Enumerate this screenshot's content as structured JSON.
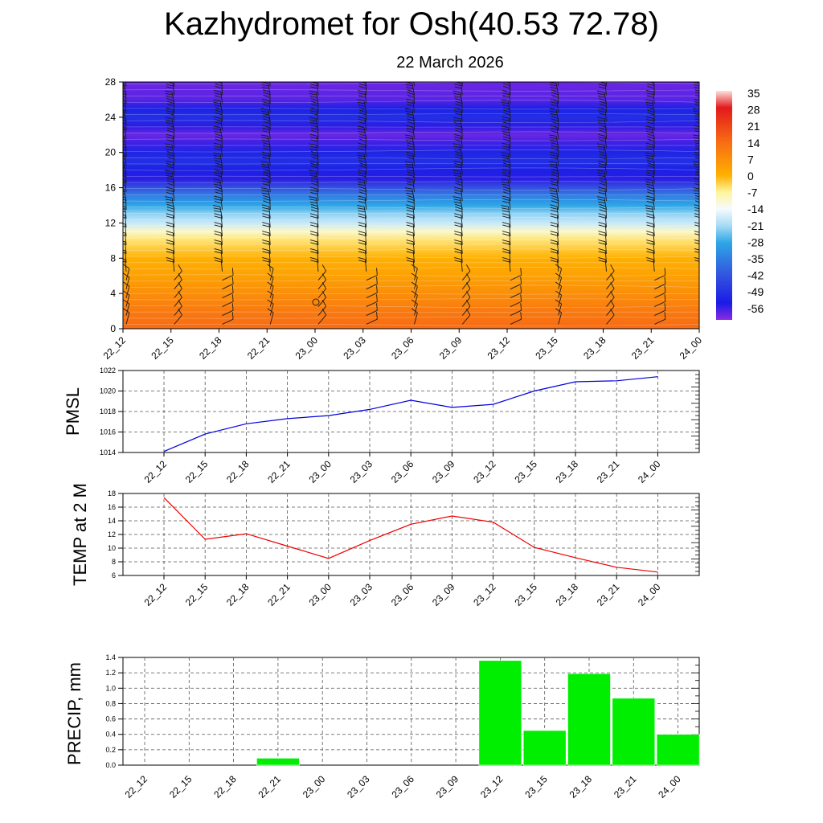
{
  "title": "Kazhydromet for Osh(40.53 72.78)",
  "subtitle": "22 March 2026",
  "time_labels": [
    "22_12",
    "22_15",
    "22_18",
    "22_21",
    "23_00",
    "23_03",
    "23_06",
    "23_09",
    "23_12",
    "23_15",
    "23_18",
    "23_21",
    "24_00"
  ],
  "chart_data": [
    {
      "type": "heatmap",
      "name": "vertical-temperature-wind",
      "x": [
        "22_12",
        "22_15",
        "22_18",
        "22_21",
        "23_00",
        "23_03",
        "23_06",
        "23_09",
        "23_12",
        "23_15",
        "23_18",
        "23_21",
        "24_00"
      ],
      "ylim": [
        0,
        28
      ],
      "yticks": [
        0,
        4,
        8,
        12,
        16,
        20,
        24,
        28
      ],
      "profile": [
        {
          "level": 0,
          "temp": 14
        },
        {
          "level": 2,
          "temp": 11
        },
        {
          "level": 4,
          "temp": 7
        },
        {
          "level": 6,
          "temp": 3
        },
        {
          "level": 8,
          "temp": 0
        },
        {
          "level": 10,
          "temp": -5
        },
        {
          "level": 11,
          "temp": -10
        },
        {
          "level": 12,
          "temp": -18
        },
        {
          "level": 13,
          "temp": -22
        },
        {
          "level": 14,
          "temp": -28
        },
        {
          "level": 15,
          "temp": -34
        },
        {
          "level": 16,
          "temp": -42
        },
        {
          "level": 17,
          "temp": -54
        },
        {
          "level": 18,
          "temp": -52
        },
        {
          "level": 19,
          "temp": -49
        },
        {
          "level": 20,
          "temp": -51
        },
        {
          "level": 21,
          "temp": -55
        },
        {
          "level": 22,
          "temp": -58
        },
        {
          "level": 23,
          "temp": -54
        },
        {
          "level": 24,
          "temp": -49
        },
        {
          "level": 25,
          "temp": -52
        },
        {
          "level": 26,
          "temp": -57
        },
        {
          "level": 28,
          "temp": -58
        }
      ],
      "colorbar": {
        "labels": [
          "35",
          "28",
          "21",
          "14",
          "7",
          "0",
          "-7",
          "-14",
          "-21",
          "-28",
          "-35",
          "-42",
          "-49",
          "-56"
        ],
        "stops": [
          {
            "value": 35,
            "color": "#fde0dd"
          },
          {
            "value": 28,
            "color": "#e3191c"
          },
          {
            "value": 14,
            "color": "#f76b14"
          },
          {
            "value": 0,
            "color": "#ffb000"
          },
          {
            "value": -7,
            "color": "#fff59d"
          },
          {
            "value": -14,
            "color": "#f6fbff"
          },
          {
            "value": -21,
            "color": "#a6dbf5"
          },
          {
            "value": -28,
            "color": "#2ea6e6"
          },
          {
            "value": -42,
            "color": "#3351e0"
          },
          {
            "value": -53,
            "color": "#1a1be6"
          },
          {
            "value": -60,
            "color": "#8a2be2"
          }
        ]
      },
      "wind_barbs": "black barbs at each time step and level"
    },
    {
      "type": "line",
      "name": "PMSL",
      "ylabel": "PMSL",
      "x": [
        "22_12",
        "22_15",
        "22_18",
        "22_21",
        "23_00",
        "23_03",
        "23_06",
        "23_09",
        "23_12",
        "23_15",
        "23_18",
        "23_21",
        "24_00"
      ],
      "values": [
        1014.1,
        1015.8,
        1016.8,
        1017.3,
        1017.6,
        1018.2,
        1019.1,
        1018.4,
        1018.7,
        1020.0,
        1020.9,
        1021.0,
        1021.4
      ],
      "ylim": [
        1014,
        1022
      ],
      "yticks": [
        1014,
        1016,
        1018,
        1020,
        1022
      ],
      "color": "#0000dd"
    },
    {
      "type": "line",
      "name": "TEMP at 2 M",
      "ylabel": "TEMP at 2 M",
      "x": [
        "22_12",
        "22_15",
        "22_18",
        "22_21",
        "23_00",
        "23_03",
        "23_06",
        "23_09",
        "23_12",
        "23_15",
        "23_18",
        "23_21",
        "24_00"
      ],
      "values": [
        17.4,
        11.3,
        12.1,
        10.3,
        8.5,
        11.1,
        13.5,
        14.7,
        13.8,
        10.1,
        8.6,
        7.2,
        6.5
      ],
      "ylim": [
        6,
        18
      ],
      "yticks": [
        6,
        8,
        10,
        12,
        14,
        16,
        18
      ],
      "color": "#ee0000"
    },
    {
      "type": "bar",
      "name": "PRECIP, mm",
      "ylabel": "PRECIP, mm",
      "categories": [
        "22_12",
        "22_15",
        "22_18",
        "22_21",
        "23_00",
        "23_03",
        "23_06",
        "23_09",
        "23_12",
        "23_15",
        "23_18",
        "23_21",
        "24_00"
      ],
      "values": [
        0,
        0,
        0,
        0.09,
        0,
        0,
        0,
        0,
        1.36,
        0.45,
        1.19,
        0.87,
        0.4
      ],
      "ylim": [
        0,
        1.4
      ],
      "yticks": [
        "0.0",
        "0.2",
        "0.4",
        "0.6",
        "0.8",
        "1.0",
        "1.2",
        "1.4"
      ],
      "color": "#00ee00"
    }
  ]
}
